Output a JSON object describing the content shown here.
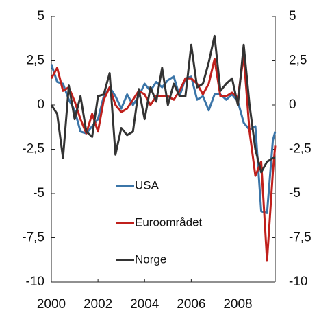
{
  "chart_data": {
    "type": "line",
    "x": [
      2000,
      2000.25,
      2000.5,
      2000.75,
      2001,
      2001.25,
      2001.5,
      2001.75,
      2002,
      2002.25,
      2002.5,
      2002.75,
      2003,
      2003.25,
      2003.5,
      2003.75,
      2004,
      2004.25,
      2004.5,
      2004.75,
      2005,
      2005.25,
      2005.5,
      2005.75,
      2006,
      2006.25,
      2006.5,
      2006.75,
      2007,
      2007.25,
      2007.5,
      2007.75,
      2008,
      2008.25,
      2008.5,
      2008.75,
      2009,
      2009.25,
      2009.5,
      2009.6
    ],
    "series": [
      {
        "name": "USA",
        "color": "#3b75a8",
        "values": [
          2.3,
          1.3,
          1.2,
          0.3,
          -0.3,
          -1.5,
          -1.6,
          -1.2,
          -0.8,
          0.5,
          1.0,
          0.5,
          -0.2,
          0.6,
          0.0,
          0.5,
          1.2,
          0.8,
          1.3,
          1.0,
          1.4,
          1.6,
          0.5,
          1.5,
          1.6,
          0.3,
          0.5,
          -0.3,
          0.6,
          0.6,
          0.3,
          0.6,
          0.2,
          -1.0,
          -1.4,
          -1.2,
          -6.0,
          -6.1,
          -2.0,
          -1.5
        ]
      },
      {
        "name": "Euroområdet",
        "color": "#c0201c",
        "values": [
          1.5,
          2.1,
          0.8,
          1.0,
          0.2,
          -0.8,
          -1.6,
          -0.5,
          -1.5,
          0.3,
          1.0,
          0.0,
          -0.4,
          -0.2,
          0.3,
          0.8,
          0.6,
          0.0,
          0.5,
          0.5,
          0.5,
          0.3,
          0.8,
          1.5,
          1.5,
          1.2,
          0.6,
          1.2,
          2.6,
          0.5,
          0.5,
          0.7,
          0.4,
          2.8,
          -1.5,
          -4.0,
          -3.2,
          -8.8,
          -3.8,
          -2.3
        ]
      },
      {
        "name": "Norge",
        "color": "#333333",
        "values": [
          0.0,
          -0.5,
          -3.0,
          1.1,
          -0.8,
          0.5,
          -1.5,
          -1.8,
          0.5,
          0.6,
          1.8,
          -2.8,
          -1.3,
          -1.7,
          -1.5,
          0.9,
          -0.8,
          1.0,
          0.2,
          2.1,
          0.0,
          1.2,
          0.5,
          0.5,
          3.4,
          1.0,
          1.2,
          2.4,
          3.9,
          0.8,
          1.2,
          1.5,
          0.0,
          3.4,
          0.0,
          -2.5,
          -3.8,
          -3.2,
          -3.0,
          -3.0
        ]
      }
    ],
    "xlim": [
      2000,
      2009.6
    ],
    "xticks": [
      2000,
      2002,
      2004,
      2006,
      2008
    ],
    "ylim": [
      -10,
      5
    ],
    "yticks": [
      -10,
      {
        "value": -7.5,
        "label": "-7,5"
      },
      -5,
      {
        "value": -2.5,
        "label": "-2,5"
      },
      0,
      {
        "value": 2.5,
        "label": "2,5"
      },
      5
    ],
    "y2lim": [
      -10,
      5
    ],
    "y2ticks": [
      -10,
      {
        "value": -7.5,
        "label": "-7,5"
      },
      -5,
      {
        "value": -2.5,
        "label": "-2,5"
      },
      0,
      {
        "value": 2.5,
        "label": "2,5"
      },
      5
    ]
  }
}
